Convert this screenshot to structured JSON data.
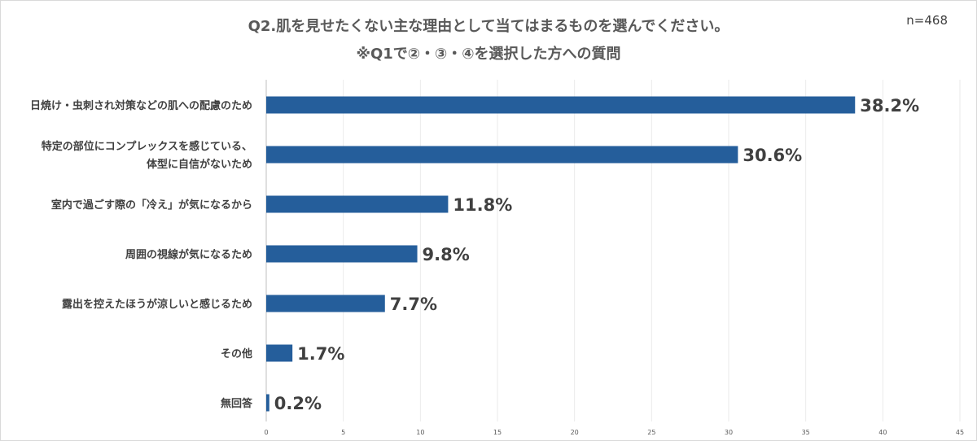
{
  "header": {
    "title_line1": "Q2.肌を見せたくない主な理由として当てはまるものを選んでください。",
    "title_line2": "※Q1で②・③・④を選択した方への質問",
    "sample_size": "n=468"
  },
  "chart_data": {
    "type": "bar",
    "orientation": "horizontal",
    "title": "Q2.肌を見せたくない主な理由として当てはまるものを選んでください。",
    "subtitle": "※Q1で②・③・④を選択した方への質問",
    "categories": [
      [
        "日焼け・虫刺され対策などの肌への配慮のため"
      ],
      [
        "特定の部位にコンプレックスを感じている、",
        "体型に自信がないため"
      ],
      [
        "室内で過ごす際の「冷え」が気になるから"
      ],
      [
        "周囲の視線が気になるため"
      ],
      [
        "露出を控えたほうが涼しいと感じるため"
      ],
      [
        "その他"
      ],
      [
        "無回答"
      ]
    ],
    "values": [
      38.2,
      30.6,
      11.8,
      9.8,
      7.7,
      1.7,
      0.2
    ],
    "value_labels": [
      "38.2%",
      "30.6%",
      "11.8%",
      "9.8%",
      "7.7%",
      "1.7%",
      "0.2%"
    ],
    "xlim": [
      0,
      45
    ],
    "xticks": [
      0,
      5,
      10,
      15,
      20,
      25,
      30,
      35,
      40,
      45
    ],
    "bar_color": "#255e9b",
    "grid": true,
    "legend": "none"
  }
}
